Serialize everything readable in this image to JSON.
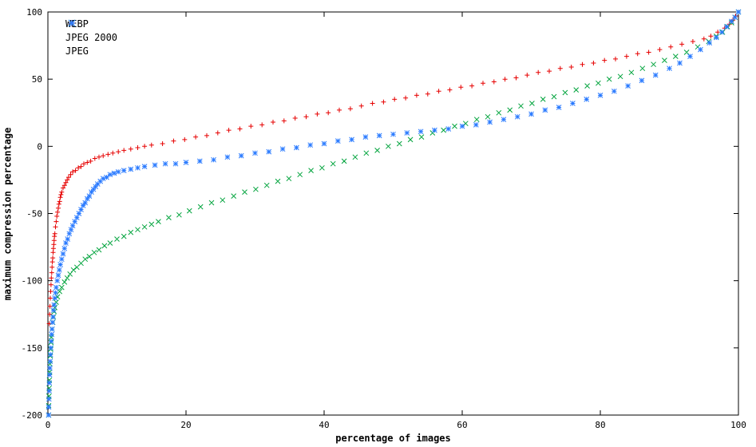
{
  "chart_data": {
    "type": "scatter",
    "title": "",
    "xlabel": "percentage of images",
    "ylabel": "maximum compression percentage",
    "xlim": [
      0,
      100
    ],
    "ylim": [
      -200,
      100
    ],
    "x_ticks": [
      0,
      20,
      40,
      60,
      80,
      100
    ],
    "y_ticks": [
      -200,
      -150,
      -100,
      -50,
      0,
      50,
      100
    ],
    "grid": false,
    "legend_position": "top-left",
    "background_color": "#ffffff",
    "border_color": "#000000",
    "series": [
      {
        "name": "WEBP",
        "marker": "plus",
        "color": "#e60000",
        "points": [
          [
            0.2,
            -132
          ],
          [
            0.25,
            -125
          ],
          [
            0.3,
            -119
          ],
          [
            0.35,
            -113
          ],
          [
            0.4,
            -108
          ],
          [
            0.45,
            -103
          ],
          [
            0.5,
            -98
          ],
          [
            0.55,
            -94
          ],
          [
            0.6,
            -90
          ],
          [
            0.65,
            -86
          ],
          [
            0.7,
            -83
          ],
          [
            0.75,
            -79
          ],
          [
            0.8,
            -76
          ],
          [
            0.85,
            -73
          ],
          [
            0.9,
            -70
          ],
          [
            0.95,
            -67
          ],
          [
            1,
            -65
          ],
          [
            1.1,
            -60
          ],
          [
            1.2,
            -56
          ],
          [
            1.3,
            -52
          ],
          [
            1.4,
            -49
          ],
          [
            1.5,
            -46
          ],
          [
            1.6,
            -43
          ],
          [
            1.7,
            -41
          ],
          [
            1.8,
            -38
          ],
          [
            1.9,
            -36
          ],
          [
            2,
            -34
          ],
          [
            2.2,
            -31
          ],
          [
            2.4,
            -29
          ],
          [
            2.6,
            -27
          ],
          [
            2.8,
            -25
          ],
          [
            3,
            -23
          ],
          [
            3.3,
            -21
          ],
          [
            3.6,
            -19
          ],
          [
            4,
            -18
          ],
          [
            4.4,
            -16
          ],
          [
            4.8,
            -15
          ],
          [
            5.2,
            -13
          ],
          [
            5.7,
            -12
          ],
          [
            6.2,
            -11
          ],
          [
            6.8,
            -9
          ],
          [
            7.4,
            -8
          ],
          [
            8,
            -7
          ],
          [
            8.7,
            -6
          ],
          [
            9.4,
            -5
          ],
          [
            10.2,
            -4
          ],
          [
            11,
            -3
          ],
          [
            12,
            -2
          ],
          [
            13,
            -1
          ],
          [
            14,
            0
          ],
          [
            15,
            1
          ],
          [
            16.6,
            2
          ],
          [
            18.2,
            4
          ],
          [
            19.8,
            5
          ],
          [
            21.4,
            7
          ],
          [
            23,
            8
          ],
          [
            24.6,
            10
          ],
          [
            26.2,
            12
          ],
          [
            27.8,
            13
          ],
          [
            29.4,
            15
          ],
          [
            31,
            16
          ],
          [
            32.6,
            18
          ],
          [
            34.2,
            19
          ],
          [
            35.8,
            21
          ],
          [
            37.4,
            22
          ],
          [
            39,
            24
          ],
          [
            40.6,
            25
          ],
          [
            42.2,
            27
          ],
          [
            43.8,
            28
          ],
          [
            45.4,
            30
          ],
          [
            47,
            32
          ],
          [
            48.6,
            33
          ],
          [
            50.2,
            35
          ],
          [
            51.8,
            36
          ],
          [
            53.4,
            38
          ],
          [
            55,
            39
          ],
          [
            56.6,
            41
          ],
          [
            58.2,
            42
          ],
          [
            59.8,
            44
          ],
          [
            61.4,
            45
          ],
          [
            63,
            47
          ],
          [
            64.6,
            48
          ],
          [
            66.2,
            50
          ],
          [
            67.8,
            51
          ],
          [
            69.4,
            53
          ],
          [
            71,
            55
          ],
          [
            72.6,
            56
          ],
          [
            74.2,
            58
          ],
          [
            75.8,
            59
          ],
          [
            77.4,
            61
          ],
          [
            79,
            62
          ],
          [
            80.6,
            64
          ],
          [
            82.2,
            65
          ],
          [
            83.8,
            67
          ],
          [
            85.4,
            69
          ],
          [
            87,
            70
          ],
          [
            88.6,
            72
          ],
          [
            90.2,
            74
          ],
          [
            91.8,
            76
          ],
          [
            93.4,
            78
          ],
          [
            95,
            80
          ],
          [
            96,
            82
          ],
          [
            97,
            85
          ],
          [
            98,
            88
          ],
          [
            98.7,
            91
          ],
          [
            99.2,
            94
          ],
          [
            99.6,
            97
          ],
          [
            100,
            100
          ]
        ]
      },
      {
        "name": "JPEG 2000",
        "marker": "cross",
        "color": "#00a33c",
        "points": [
          [
            0.1,
            -200
          ],
          [
            0.12,
            -193
          ],
          [
            0.15,
            -186
          ],
          [
            0.18,
            -180
          ],
          [
            0.22,
            -174
          ],
          [
            0.26,
            -168
          ],
          [
            0.3,
            -162
          ],
          [
            0.35,
            -156
          ],
          [
            0.4,
            -151
          ],
          [
            0.45,
            -146
          ],
          [
            0.5,
            -142
          ],
          [
            0.6,
            -136
          ],
          [
            0.7,
            -131
          ],
          [
            0.8,
            -127
          ],
          [
            0.9,
            -123
          ],
          [
            1,
            -120
          ],
          [
            1.2,
            -116
          ],
          [
            1.4,
            -112
          ],
          [
            1.7,
            -108
          ],
          [
            2,
            -105
          ],
          [
            2.4,
            -101
          ],
          [
            2.8,
            -98
          ],
          [
            3.2,
            -95
          ],
          [
            3.7,
            -92
          ],
          [
            4.2,
            -90
          ],
          [
            4.8,
            -87
          ],
          [
            5.4,
            -84
          ],
          [
            6,
            -82
          ],
          [
            6.7,
            -79
          ],
          [
            7.4,
            -77
          ],
          [
            8.2,
            -74
          ],
          [
            9,
            -72
          ],
          [
            10,
            -69
          ],
          [
            11,
            -67
          ],
          [
            12,
            -64
          ],
          [
            13,
            -62
          ],
          [
            14,
            -60
          ],
          [
            15,
            -58
          ],
          [
            16,
            -56
          ],
          [
            17.5,
            -53
          ],
          [
            19,
            -51
          ],
          [
            20.5,
            -48
          ],
          [
            22.1,
            -45
          ],
          [
            23.7,
            -42
          ],
          [
            25.3,
            -40
          ],
          [
            26.9,
            -37
          ],
          [
            28.5,
            -34
          ],
          [
            30.1,
            -32
          ],
          [
            31.7,
            -29
          ],
          [
            33.3,
            -26
          ],
          [
            34.9,
            -24
          ],
          [
            36.5,
            -21
          ],
          [
            38.1,
            -18
          ],
          [
            39.7,
            -16
          ],
          [
            41.3,
            -13
          ],
          [
            42.9,
            -11
          ],
          [
            44.5,
            -8
          ],
          [
            46.1,
            -5
          ],
          [
            47.7,
            -3
          ],
          [
            49.3,
            0
          ],
          [
            50.9,
            2
          ],
          [
            52.5,
            5
          ],
          [
            54.1,
            7
          ],
          [
            55.7,
            10
          ],
          [
            57.3,
            12
          ],
          [
            58.9,
            15
          ],
          [
            60.5,
            17
          ],
          [
            62.1,
            20
          ],
          [
            63.7,
            22
          ],
          [
            65.3,
            25
          ],
          [
            66.9,
            27
          ],
          [
            68.5,
            30
          ],
          [
            70.1,
            32
          ],
          [
            71.7,
            35
          ],
          [
            73.3,
            37
          ],
          [
            74.9,
            40
          ],
          [
            76.5,
            42
          ],
          [
            78.1,
            45
          ],
          [
            79.7,
            47
          ],
          [
            81.3,
            50
          ],
          [
            82.9,
            52
          ],
          [
            84.5,
            55
          ],
          [
            86.1,
            58
          ],
          [
            87.7,
            61
          ],
          [
            89.3,
            64
          ],
          [
            90.9,
            67
          ],
          [
            92.5,
            70
          ],
          [
            94.1,
            74
          ],
          [
            95.7,
            78
          ],
          [
            96.8,
            82
          ],
          [
            97.7,
            85
          ],
          [
            98.4,
            89
          ],
          [
            99,
            92
          ],
          [
            99.5,
            96
          ],
          [
            100,
            100
          ]
        ]
      },
      {
        "name": "JPEG",
        "marker": "star",
        "color": "#2b7bff",
        "points": [
          [
            0.1,
            -200
          ],
          [
            0.12,
            -194
          ],
          [
            0.15,
            -188
          ],
          [
            0.18,
            -182
          ],
          [
            0.21,
            -176
          ],
          [
            0.25,
            -170
          ],
          [
            0.29,
            -165
          ],
          [
            0.33,
            -160
          ],
          [
            0.38,
            -155
          ],
          [
            0.43,
            -150
          ],
          [
            0.48,
            -145
          ],
          [
            0.54,
            -140
          ],
          [
            0.6,
            -136
          ],
          [
            0.67,
            -131
          ],
          [
            0.74,
            -127
          ],
          [
            0.82,
            -122
          ],
          [
            0.9,
            -118
          ],
          [
            1,
            -113
          ],
          [
            1.1,
            -109
          ],
          [
            1.2,
            -105
          ],
          [
            1.35,
            -100
          ],
          [
            1.5,
            -96
          ],
          [
            1.65,
            -92
          ],
          [
            1.8,
            -88
          ],
          [
            2,
            -84
          ],
          [
            2.2,
            -80
          ],
          [
            2.4,
            -76
          ],
          [
            2.6,
            -72
          ],
          [
            2.85,
            -69
          ],
          [
            3.1,
            -65
          ],
          [
            3.35,
            -62
          ],
          [
            3.6,
            -59
          ],
          [
            3.9,
            -56
          ],
          [
            4.2,
            -53
          ],
          [
            4.5,
            -50
          ],
          [
            4.8,
            -47
          ],
          [
            5.1,
            -44
          ],
          [
            5.4,
            -42
          ],
          [
            5.7,
            -39
          ],
          [
            6,
            -37
          ],
          [
            6.3,
            -34
          ],
          [
            6.6,
            -32
          ],
          [
            6.9,
            -30
          ],
          [
            7.2,
            -28
          ],
          [
            7.6,
            -26
          ],
          [
            8,
            -24
          ],
          [
            8.5,
            -23
          ],
          [
            9,
            -21
          ],
          [
            9.6,
            -20
          ],
          [
            10.2,
            -19
          ],
          [
            11,
            -18
          ],
          [
            12,
            -17
          ],
          [
            13,
            -16
          ],
          [
            14,
            -15
          ],
          [
            15.5,
            -14
          ],
          [
            17,
            -13
          ],
          [
            18.5,
            -13
          ],
          [
            20,
            -12
          ],
          [
            22,
            -11
          ],
          [
            24,
            -10
          ],
          [
            26,
            -8
          ],
          [
            28,
            -7
          ],
          [
            30,
            -5
          ],
          [
            32,
            -4
          ],
          [
            34,
            -2
          ],
          [
            36,
            -1
          ],
          [
            38,
            1
          ],
          [
            40,
            2
          ],
          [
            42,
            4
          ],
          [
            44,
            5
          ],
          [
            46,
            7
          ],
          [
            48,
            8
          ],
          [
            50,
            9
          ],
          [
            52,
            10
          ],
          [
            54,
            11
          ],
          [
            56,
            12
          ],
          [
            58,
            13
          ],
          [
            60,
            15
          ],
          [
            62,
            16
          ],
          [
            64,
            18
          ],
          [
            66,
            20
          ],
          [
            68,
            22
          ],
          [
            70,
            24
          ],
          [
            72,
            27
          ],
          [
            74,
            29
          ],
          [
            76,
            32
          ],
          [
            78,
            35
          ],
          [
            80,
            38
          ],
          [
            82,
            41
          ],
          [
            84,
            45
          ],
          [
            86,
            49
          ],
          [
            88,
            53
          ],
          [
            90,
            58
          ],
          [
            91.5,
            62
          ],
          [
            93,
            67
          ],
          [
            94.5,
            72
          ],
          [
            95.8,
            77
          ],
          [
            96.8,
            81
          ],
          [
            97.6,
            85
          ],
          [
            98.3,
            89
          ],
          [
            99,
            93
          ],
          [
            99.5,
            96
          ],
          [
            100,
            100
          ]
        ]
      }
    ]
  }
}
